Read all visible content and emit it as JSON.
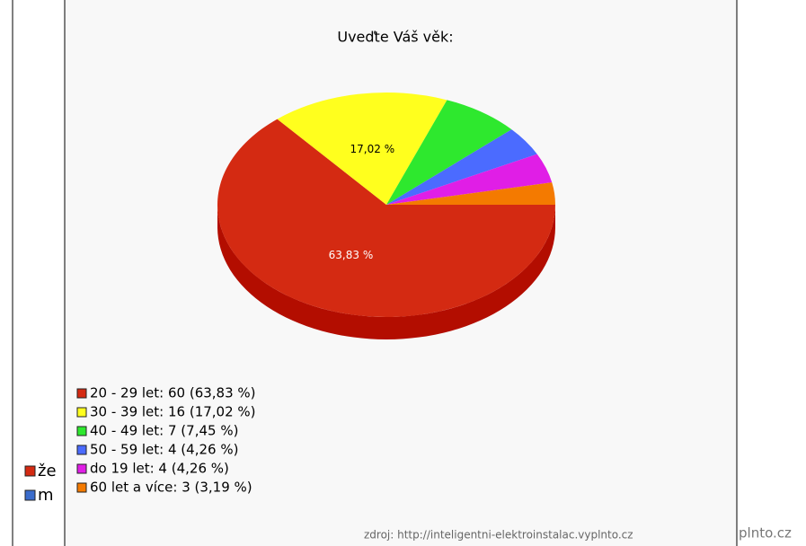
{
  "chart_data": {
    "type": "pie",
    "title": "Uveďte Váš věk:",
    "categories": [
      "20 - 29 let: 60 (63,83 %)",
      "30 - 39 let: 16 (17,02 %)",
      "40 - 49 let: 7 (7,45 %)",
      "50 - 59 let: 4 (4,26 %)",
      "do 19 let: 4 (4,26 %)",
      "60 let a více: 3 (3,19 %)"
    ],
    "values": [
      63.83,
      17.02,
      7.45,
      4.26,
      4.26,
      3.19
    ],
    "value_labels": [
      "63,83 %",
      "17,02 %",
      null,
      null,
      null,
      null
    ],
    "colors": [
      "#d42a12",
      "#ffff1e",
      "#2ee82e",
      "#4b6bff",
      "#e01ee6",
      "#f47a00"
    ],
    "source": "zdroj: http://inteligentni-elektroinstalac.vyplnto.cz"
  },
  "background_chart": {
    "legend": [
      "že",
      "m"
    ],
    "source": "plnto.cz"
  }
}
